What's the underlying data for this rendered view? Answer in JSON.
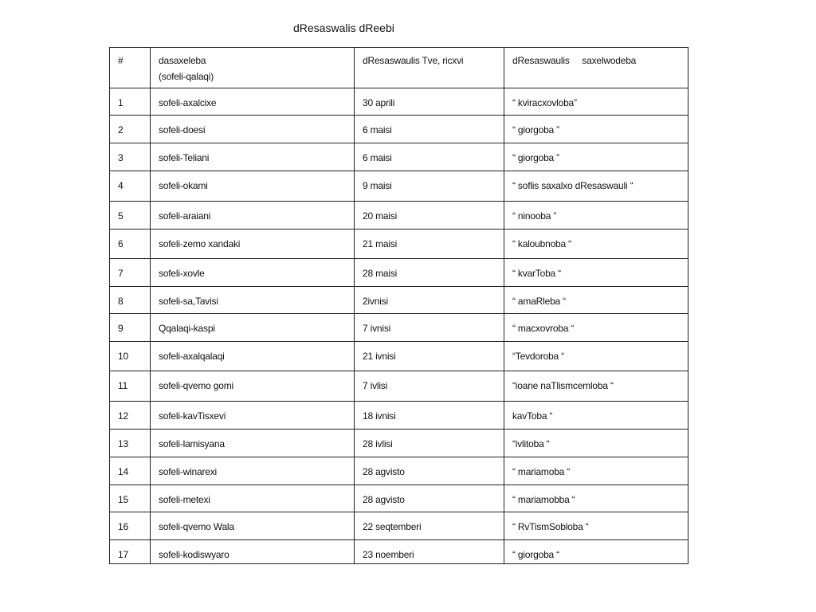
{
  "title": "dResaswalis dReebi",
  "headers": {
    "num": "#",
    "place_line1": "dasaxeleba",
    "place_line2": "(sofeli-qalaqi)",
    "date": "dResaswaulis Tve, ricxvi",
    "name": "dResaswaulis     saxelwodeba"
  },
  "rows": [
    {
      "num": "1",
      "place": "sofeli-axalcixe",
      "date": "30 aprili",
      "name": "“ kviracxovloba”"
    },
    {
      "num": "2",
      "place": "sofeli-doesi",
      "date": "6 maisi",
      "name": "“ giorgoba ”"
    },
    {
      "num": "3",
      "place": "sofeli-Teliani",
      "date": "6 maisi",
      "name": "“ giorgoba ”"
    },
    {
      "num": "4",
      "place": "sofeli-okami",
      "date": "9 maisi",
      "name": "“ soflis saxalxo dResaswauli “"
    },
    {
      "num": "5",
      "place": "sofeli-araiani",
      "date": "20 maisi",
      "name": "“ ninooba ”"
    },
    {
      "num": "6",
      "place": "sofeli-zemo xandaki",
      "date": "21 maisi",
      "name": "“ kaloubnoba “"
    },
    {
      "num": "7",
      "place": "sofeli-xovle",
      "date": "28 maisi",
      "name": "“ kvarToba “"
    },
    {
      "num": "8",
      "place": "sofeli-sa,Tavisi",
      "date": "2ivnisi",
      "name": "“ amaRleba “"
    },
    {
      "num": "9",
      "place": "Qqalaqi-kaspi",
      "date": "7 ivnisi",
      "name": "“ macxovroba “"
    },
    {
      "num": "10",
      "place": "sofeli-axalqalaqi",
      "date": "21 ivnisi",
      "name": "“Tevdoroba “"
    },
    {
      "num": "11",
      "place": "sofeli-qvemo gomi",
      "date": "7 ivlisi",
      "name": "“ioane naTlismcemloba “"
    },
    {
      "num": "12",
      "place": "sofeli-kavTisxevi",
      "date": "18 ivnisi",
      "name": "kavToba “"
    },
    {
      "num": "13",
      "place": "sofeli-lamisyana",
      "date": "28 ivlisi",
      "name": "“ivlitoba “"
    },
    {
      "num": "14",
      "place": "sofeli-winarexi",
      "date": "28 agvisto",
      "name": "“ mariamoba “"
    },
    {
      "num": "15",
      "place": "sofeli-metexi",
      "date": "28 agvisto",
      "name": "“ mariamobba “"
    },
    {
      "num": "16",
      "place": "sofeli-qvemo Wala",
      "date": "22 seqtemberi",
      "name": "“ RvTismSobloba “"
    },
    {
      "num": "17",
      "place": "sofeli-kodiswyaro",
      "date": "23 noemberi",
      "name": "“ giorgoba “"
    }
  ]
}
